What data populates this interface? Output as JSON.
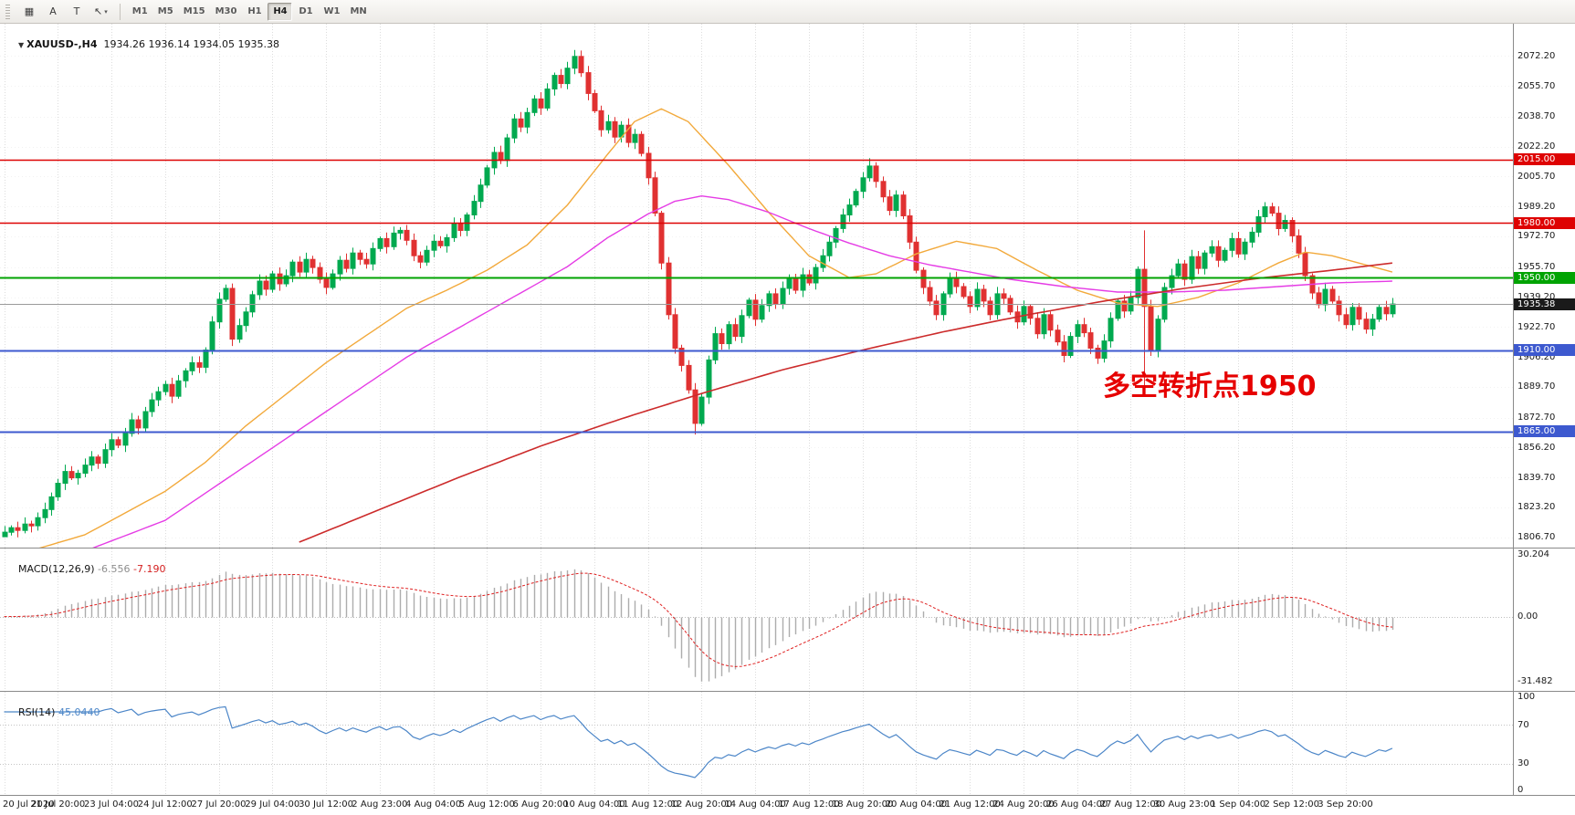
{
  "toolbar": {
    "tools": [
      {
        "name": "charts-grid-tool",
        "label": "▦",
        "caret": false
      },
      {
        "name": "arrow-label-tool",
        "label": "A",
        "caret": false
      },
      {
        "name": "text-tool",
        "label": "T",
        "caret": false
      },
      {
        "name": "draw-objects-tool",
        "label": "↖",
        "caret": true
      }
    ],
    "timeframes": [
      "M1",
      "M5",
      "M15",
      "M30",
      "H1",
      "H4",
      "D1",
      "W1",
      "MN"
    ],
    "selected_timeframe": "H4"
  },
  "chart": {
    "title_symbol": "XAUUSD-,H4",
    "title_ohlc": "  1934.26 1936.14 1934.05 1935.38",
    "annotation": "多空转折点1950",
    "price_axis": [
      "2072.20",
      "2055.70",
      "2038.70",
      "2022.20",
      "2005.70",
      "1989.20",
      "1972.70",
      "1955.70",
      "1939.20",
      "1922.70",
      "1906.20",
      "1889.70",
      "1872.70",
      "1856.20",
      "1839.70",
      "1823.20",
      "1806.70"
    ],
    "hlines": [
      {
        "price": 2015.0,
        "label": "2015.00",
        "color_key": "level_red",
        "width": 1.4
      },
      {
        "price": 1980.0,
        "label": "1980.00",
        "color_key": "level_red",
        "width": 1.4
      },
      {
        "price": 1950.0,
        "label": "1950.00",
        "color_key": "level_green",
        "width": 2
      },
      {
        "price": 1910.0,
        "label": "1910.00",
        "color_key": "level_blue",
        "width": 2
      },
      {
        "price": 1865.0,
        "label": "1865.00",
        "color_key": "level_blue",
        "width": 2
      }
    ],
    "bid": {
      "price": 1935.38,
      "label": "1935.38"
    },
    "colors": {
      "up": "#00A94F",
      "down": "#E03131",
      "ma_fast": "#F2A93B",
      "ma_mid": "#E53CE5",
      "ma_slow": "#CC2B2B",
      "macd_hist": "#ADADAD",
      "macd_signal": "#DF2020",
      "rsi": "#4C86C8",
      "grid": "#DCDCDC",
      "hgrid": "#F2F2F2",
      "level_red": "#DE0202",
      "level_green": "#00A302",
      "level_blue": "#3D59CF",
      "bid_line": "#9B9B9B",
      "bid_bg": "#1A1A1A"
    }
  },
  "chart_data": {
    "type": "candlestick",
    "symbol": "XAUUSD",
    "timeframe": "H4",
    "bars_per_label": 8,
    "open_first": 1807.0,
    "closes": [
      1809.5,
      1812,
      1810.5,
      1814,
      1813,
      1817.5,
      1822,
      1829,
      1836.5,
      1843,
      1839.5,
      1842,
      1846.5,
      1851,
      1847.5,
      1855,
      1860.5,
      1857.5,
      1864,
      1871.5,
      1867,
      1876,
      1882.5,
      1887,
      1891,
      1884.5,
      1893,
      1898.5,
      1903,
      1900.5,
      1910,
      1925.5,
      1938,
      1944,
      1916,
      1923.5,
      1931,
      1940.5,
      1948,
      1943.5,
      1952,
      1946.5,
      1951,
      1958.5,
      1953,
      1960,
      1955.5,
      1949,
      1944.5,
      1952,
      1959.5,
      1955,
      1963.5,
      1960,
      1957.5,
      1966,
      1971.5,
      1967,
      1974.5,
      1976,
      1970.5,
      1962,
      1958.5,
      1965,
      1970,
      1967.5,
      1972,
      1979.5,
      1976,
      1984.5,
      1992,
      2001,
      2010.5,
      2019,
      2014.5,
      2027,
      2037.5,
      2033,
      2041,
      2048.5,
      2043.5,
      2054,
      2061.5,
      2057,
      2065.5,
      2072,
      2063,
      2051.5,
      2042,
      2031.5,
      2036,
      2027.5,
      2034,
      2024.5,
      2029,
      2018.5,
      2005,
      1985.5,
      1958,
      1929.5,
      1911,
      1901.5,
      1888,
      1869.5,
      1884,
      1904.5,
      1919,
      1913.5,
      1924,
      1917.5,
      1929,
      1937.5,
      1927,
      1934.5,
      1941,
      1935.5,
      1944,
      1949.5,
      1943,
      1951.5,
      1947,
      1955.5,
      1962,
      1969.5,
      1977,
      1984.5,
      1990,
      1997.5,
      2005,
      2011.5,
      2003,
      1994.5,
      1987,
      1995.5,
      1984,
      1969.5,
      1954,
      1944.5,
      1937,
      1929.5,
      1941,
      1949.5,
      1945,
      1939.5,
      1934,
      1943.5,
      1937,
      1929.5,
      1941,
      1938.5,
      1931,
      1925.5,
      1934,
      1927.5,
      1919,
      1929.5,
      1921,
      1914.5,
      1907,
      1917.5,
      1924,
      1919.5,
      1911,
      1905.5,
      1915,
      1927.5,
      1937,
      1931.5,
      1939,
      1954.5,
      1934,
      1909.5,
      1927,
      1944.5,
      1951,
      1957.5,
      1949,
      1961.5,
      1955,
      1963.5,
      1967,
      1959.5,
      1965,
      1971.5,
      1963,
      1969.5,
      1975,
      1983.5,
      1989,
      1985.5,
      1977,
      1981.5,
      1973,
      1963.5,
      1951,
      1941.5,
      1935,
      1943.5,
      1937,
      1929.5,
      1924,
      1933.5,
      1927,
      1921.5,
      1927,
      1933.5,
      1930,
      1935.38
    ],
    "wick_overrides": {
      "0": {
        "l": 1806.8
      },
      "85": {
        "h": 2075.5
      },
      "103": {
        "l": 1863.4
      },
      "129": {
        "h": 2015.8
      },
      "170": {
        "h": 1976.0,
        "l": 1887.0
      }
    },
    "moving_averages": [
      {
        "name": "ma-fast-orange",
        "color_key": "ma_fast",
        "width": 1.4,
        "points": [
          [
            0,
            1795
          ],
          [
            12,
            1808
          ],
          [
            24,
            1832
          ],
          [
            30,
            1848
          ],
          [
            36,
            1868
          ],
          [
            48,
            1903
          ],
          [
            60,
            1933
          ],
          [
            66,
            1943
          ],
          [
            72,
            1954
          ],
          [
            78,
            1968
          ],
          [
            84,
            1990
          ],
          [
            90,
            2018
          ],
          [
            94,
            2036
          ],
          [
            98,
            2043
          ],
          [
            102,
            2036
          ],
          [
            108,
            2012
          ],
          [
            114,
            1986
          ],
          [
            120,
            1962
          ],
          [
            126,
            1950
          ],
          [
            130,
            1952
          ],
          [
            136,
            1963
          ],
          [
            142,
            1970
          ],
          [
            148,
            1966
          ],
          [
            154,
            1954
          ],
          [
            160,
            1943
          ],
          [
            166,
            1936
          ],
          [
            172,
            1934
          ],
          [
            178,
            1939
          ],
          [
            184,
            1947
          ],
          [
            190,
            1958
          ],
          [
            194,
            1964
          ],
          [
            198,
            1962
          ],
          [
            203,
            1957
          ],
          [
            207,
            1953
          ]
        ]
      },
      {
        "name": "ma-mid-magenta",
        "color_key": "ma_mid",
        "width": 1.4,
        "points": [
          [
            0,
            1788
          ],
          [
            12,
            1799
          ],
          [
            24,
            1816
          ],
          [
            36,
            1846
          ],
          [
            48,
            1876
          ],
          [
            60,
            1906
          ],
          [
            72,
            1931
          ],
          [
            84,
            1956
          ],
          [
            90,
            1972
          ],
          [
            96,
            1985
          ],
          [
            100,
            1992
          ],
          [
            104,
            1995
          ],
          [
            108,
            1993
          ],
          [
            114,
            1986
          ],
          [
            120,
            1977
          ],
          [
            126,
            1969
          ],
          [
            132,
            1962
          ],
          [
            138,
            1957
          ],
          [
            144,
            1953
          ],
          [
            150,
            1949
          ],
          [
            158,
            1945
          ],
          [
            166,
            1942
          ],
          [
            174,
            1942
          ],
          [
            182,
            1943
          ],
          [
            190,
            1945
          ],
          [
            198,
            1947
          ],
          [
            207,
            1948
          ]
        ]
      },
      {
        "name": "ma-slow-red",
        "color_key": "ma_slow",
        "width": 1.6,
        "points": [
          [
            44,
            1804
          ],
          [
            56,
            1822
          ],
          [
            68,
            1840
          ],
          [
            80,
            1857
          ],
          [
            92,
            1872
          ],
          [
            104,
            1886
          ],
          [
            116,
            1899
          ],
          [
            128,
            1910
          ],
          [
            140,
            1920
          ],
          [
            152,
            1929
          ],
          [
            164,
            1937
          ],
          [
            176,
            1944
          ],
          [
            188,
            1950
          ],
          [
            198,
            1954
          ],
          [
            207,
            1958
          ]
        ]
      }
    ],
    "indicators": {
      "macd": {
        "fast": 12,
        "slow": 26,
        "signal": 9
      },
      "rsi": {
        "period": 14
      }
    }
  },
  "macd_panel": {
    "name": "MACD(12,26,9)",
    "value": " -6.556",
    "signal_value": " -7.190",
    "ticks": [
      "30.204",
      "0.00",
      "-31.482"
    ],
    "tick_values": [
      30.204,
      0,
      -31.482
    ]
  },
  "rsi_panel": {
    "name": "RSI(14)",
    "value": " 45.0440",
    "ticks": [
      "100",
      "70",
      "30",
      "0"
    ],
    "tick_values": [
      100,
      70,
      30,
      0
    ],
    "levels": [
      70,
      30
    ]
  },
  "time_axis": {
    "labels": [
      "20 Jul 2020",
      "21 Jul 20:00",
      "23 Jul 04:00",
      "24 Jul 12:00",
      "27 Jul 20:00",
      "29 Jul 04:00",
      "30 Jul 12:00",
      "2 Aug 23:00",
      "4 Aug 04:00",
      "5 Aug 12:00",
      "6 Aug 20:00",
      "10 Aug 04:00",
      "11 Aug 12:00",
      "12 Aug 20:00",
      "14 Aug 04:00",
      "17 Aug 12:00",
      "18 Aug 20:00",
      "20 Aug 04:00",
      "21 Aug 12:00",
      "24 Aug 20:00",
      "26 Aug 04:00",
      "27 Aug 12:00",
      "30 Aug 23:00",
      "1 Sep 04:00",
      "2 Sep 12:00",
      "3 Sep 20:00"
    ]
  }
}
